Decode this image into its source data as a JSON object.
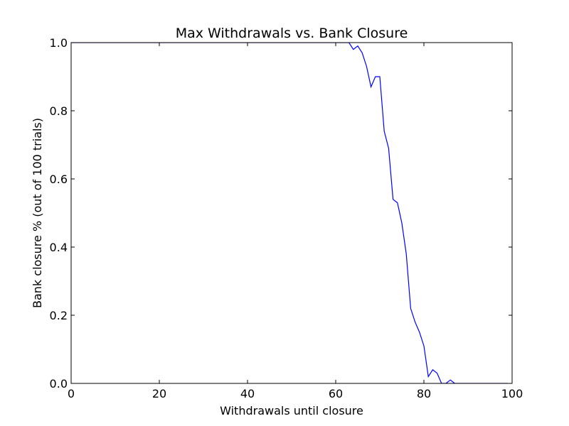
{
  "chart_data": {
    "type": "line",
    "title": "Max Withdrawals vs. Bank Closure",
    "xlabel": "Withdrawals until closure",
    "ylabel": "Bank closure % (out of 100 trials)",
    "xlim": [
      0,
      100
    ],
    "ylim": [
      0,
      1
    ],
    "xticks": [
      0,
      20,
      40,
      60,
      80,
      100
    ],
    "yticks": [
      0,
      0.2,
      0.4,
      0.6,
      0.8,
      1.0
    ],
    "xtick_labels": [
      "0",
      "20",
      "40",
      "60",
      "80",
      "100"
    ],
    "ytick_labels": [
      "0.0",
      "0.2",
      "0.4",
      "0.6",
      "0.8",
      "1.0"
    ],
    "grid": false,
    "series": [
      {
        "color": "#0000ff",
        "x": [
          0,
          10,
          20,
          30,
          40,
          50,
          60,
          61,
          62,
          63,
          64,
          65,
          66,
          67,
          68,
          69,
          70,
          71,
          72,
          73,
          74,
          75,
          76,
          77,
          78,
          79,
          80,
          81,
          82,
          83,
          84,
          85,
          86,
          87,
          88,
          90,
          95,
          99
        ],
        "y": [
          1.0,
          1.0,
          1.0,
          1.0,
          1.0,
          1.0,
          1.0,
          1.0,
          1.0,
          1.0,
          0.98,
          0.99,
          0.97,
          0.93,
          0.87,
          0.9,
          0.9,
          0.74,
          0.69,
          0.54,
          0.53,
          0.47,
          0.38,
          0.22,
          0.18,
          0.15,
          0.11,
          0.02,
          0.04,
          0.03,
          0.0,
          0.0,
          0.01,
          0.0,
          0.0,
          0.0,
          0.0,
          0.0
        ]
      }
    ]
  }
}
